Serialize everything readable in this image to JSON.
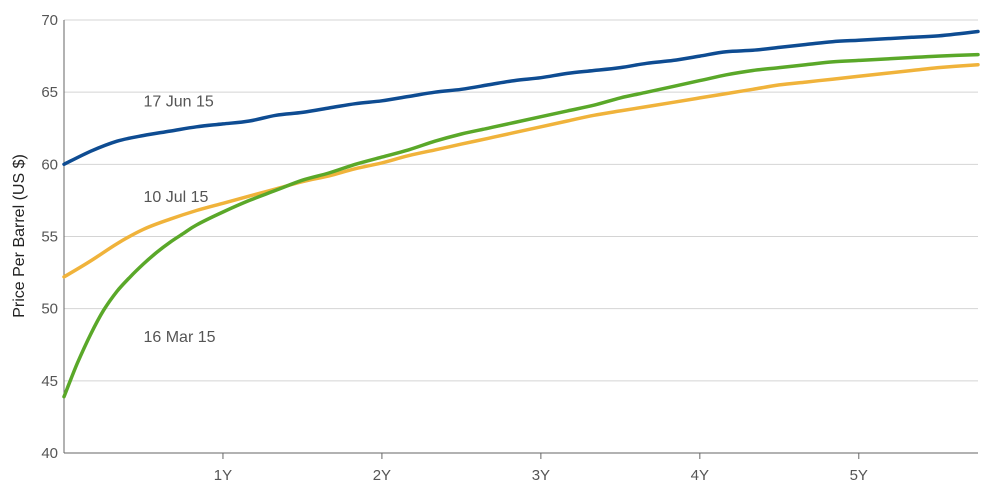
{
  "chart_data": {
    "type": "line",
    "ylabel": "Price Per Barrel (US $)",
    "ylim": [
      40,
      70
    ],
    "xlim": [
      0,
      69
    ],
    "grid": true,
    "y_ticks": [
      40,
      45,
      50,
      55,
      60,
      65,
      70
    ],
    "x_ticks": [
      {
        "label": "1Y",
        "value": 12
      },
      {
        "label": "2Y",
        "value": 24
      },
      {
        "label": "3Y",
        "value": 36
      },
      {
        "label": "4Y",
        "value": 48
      },
      {
        "label": "5Y",
        "value": 60
      }
    ],
    "series": [
      {
        "name": "17 Jun 15",
        "color": "#0e4c92",
        "label_anchor": [
          6,
          64.0
        ],
        "points": [
          [
            0,
            60.0
          ],
          [
            2,
            60.9
          ],
          [
            4,
            61.6
          ],
          [
            6,
            62.0
          ],
          [
            8,
            62.3
          ],
          [
            10,
            62.6
          ],
          [
            12,
            62.8
          ],
          [
            14,
            63.0
          ],
          [
            16,
            63.4
          ],
          [
            18,
            63.6
          ],
          [
            20,
            63.9
          ],
          [
            22,
            64.2
          ],
          [
            24,
            64.4
          ],
          [
            26,
            64.7
          ],
          [
            28,
            65.0
          ],
          [
            30,
            65.2
          ],
          [
            32,
            65.5
          ],
          [
            34,
            65.8
          ],
          [
            36,
            66.0
          ],
          [
            38,
            66.3
          ],
          [
            40,
            66.5
          ],
          [
            42,
            66.7
          ],
          [
            44,
            67.0
          ],
          [
            46,
            67.2
          ],
          [
            48,
            67.5
          ],
          [
            50,
            67.8
          ],
          [
            52,
            67.9
          ],
          [
            54,
            68.1
          ],
          [
            56,
            68.3
          ],
          [
            58,
            68.5
          ],
          [
            60,
            68.6
          ],
          [
            62,
            68.7
          ],
          [
            64,
            68.8
          ],
          [
            66,
            68.9
          ],
          [
            69,
            69.2
          ]
        ]
      },
      {
        "name": "10 Jul 15",
        "color": "#f0b33b",
        "label_anchor": [
          6,
          57.4
        ],
        "points": [
          [
            0,
            52.2
          ],
          [
            2,
            53.3
          ],
          [
            4,
            54.5
          ],
          [
            6,
            55.5
          ],
          [
            8,
            56.2
          ],
          [
            10,
            56.8
          ],
          [
            12,
            57.3
          ],
          [
            14,
            57.8
          ],
          [
            16,
            58.3
          ],
          [
            18,
            58.8
          ],
          [
            20,
            59.2
          ],
          [
            22,
            59.7
          ],
          [
            24,
            60.1
          ],
          [
            26,
            60.6
          ],
          [
            28,
            61.0
          ],
          [
            30,
            61.4
          ],
          [
            32,
            61.8
          ],
          [
            34,
            62.2
          ],
          [
            36,
            62.6
          ],
          [
            38,
            63.0
          ],
          [
            40,
            63.4
          ],
          [
            42,
            63.7
          ],
          [
            44,
            64.0
          ],
          [
            46,
            64.3
          ],
          [
            48,
            64.6
          ],
          [
            50,
            64.9
          ],
          [
            52,
            65.2
          ],
          [
            54,
            65.5
          ],
          [
            56,
            65.7
          ],
          [
            58,
            65.9
          ],
          [
            60,
            66.1
          ],
          [
            62,
            66.3
          ],
          [
            64,
            66.5
          ],
          [
            66,
            66.7
          ],
          [
            69,
            66.9
          ]
        ]
      },
      {
        "name": "16 Mar 15",
        "color": "#5aa829",
        "label_anchor": [
          6,
          47.7
        ],
        "points": [
          [
            0,
            43.9
          ],
          [
            1,
            46.2
          ],
          [
            2,
            48.2
          ],
          [
            3,
            49.9
          ],
          [
            4,
            51.2
          ],
          [
            5,
            52.2
          ],
          [
            6,
            53.1
          ],
          [
            7,
            53.9
          ],
          [
            8,
            54.6
          ],
          [
            9,
            55.2
          ],
          [
            10,
            55.8
          ],
          [
            12,
            56.7
          ],
          [
            14,
            57.5
          ],
          [
            16,
            58.2
          ],
          [
            18,
            58.9
          ],
          [
            20,
            59.4
          ],
          [
            22,
            60.0
          ],
          [
            24,
            60.5
          ],
          [
            26,
            61.0
          ],
          [
            28,
            61.6
          ],
          [
            30,
            62.1
          ],
          [
            32,
            62.5
          ],
          [
            34,
            62.9
          ],
          [
            36,
            63.3
          ],
          [
            38,
            63.7
          ],
          [
            40,
            64.1
          ],
          [
            42,
            64.6
          ],
          [
            44,
            65.0
          ],
          [
            46,
            65.4
          ],
          [
            48,
            65.8
          ],
          [
            50,
            66.2
          ],
          [
            52,
            66.5
          ],
          [
            54,
            66.7
          ],
          [
            56,
            66.9
          ],
          [
            58,
            67.1
          ],
          [
            60,
            67.2
          ],
          [
            62,
            67.3
          ],
          [
            64,
            67.4
          ],
          [
            66,
            67.5
          ],
          [
            69,
            67.6
          ]
        ]
      }
    ]
  }
}
